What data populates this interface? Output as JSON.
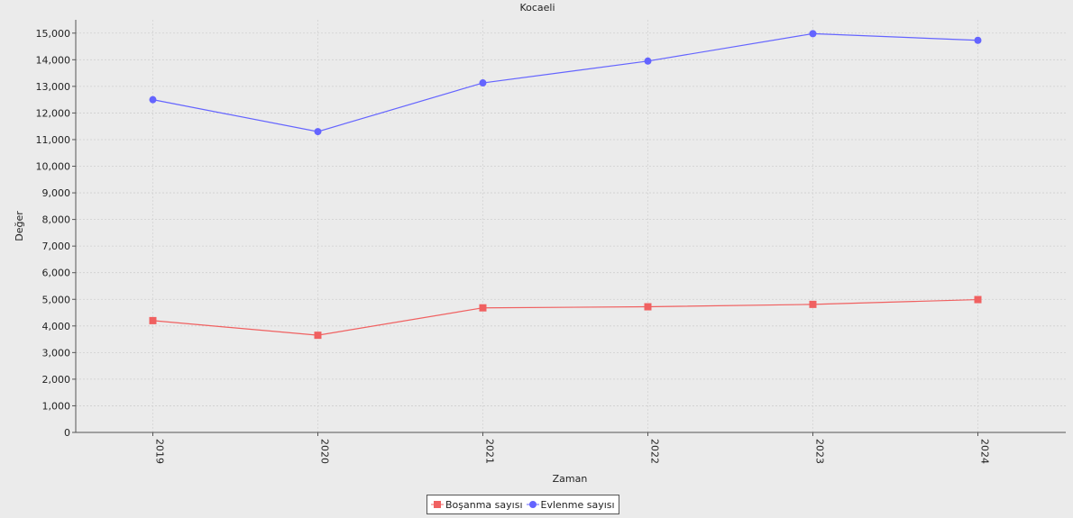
{
  "chart_data": {
    "type": "line",
    "title": "Kocaeli",
    "xlabel": "Zaman",
    "ylabel": "Değer",
    "categories": [
      "2019",
      "2020",
      "2021",
      "2022",
      "2023",
      "2024"
    ],
    "ylim": [
      0,
      15500
    ],
    "yticks": [
      0,
      1000,
      2000,
      3000,
      4000,
      5000,
      6000,
      7000,
      8000,
      9000,
      10000,
      11000,
      12000,
      13000,
      14000,
      15000
    ],
    "ytick_labels": [
      "0",
      "1,000",
      "2,000",
      "3,000",
      "4,000",
      "5,000",
      "6,000",
      "7,000",
      "8,000",
      "9,000",
      "10,000",
      "11,000",
      "12,000",
      "13,000",
      "14,000",
      "15,000"
    ],
    "grid": true,
    "legend_position": "bottom-center",
    "series": [
      {
        "name": "Boşanma sayısı",
        "color": "#f06060",
        "marker": "square",
        "values": [
          4200,
          3650,
          4680,
          4720,
          4810,
          4990
        ]
      },
      {
        "name": "Evlenme sayısı",
        "color": "#6464ff",
        "marker": "circle",
        "values": [
          12500,
          11300,
          13130,
          13950,
          14980,
          14730
        ]
      }
    ]
  }
}
